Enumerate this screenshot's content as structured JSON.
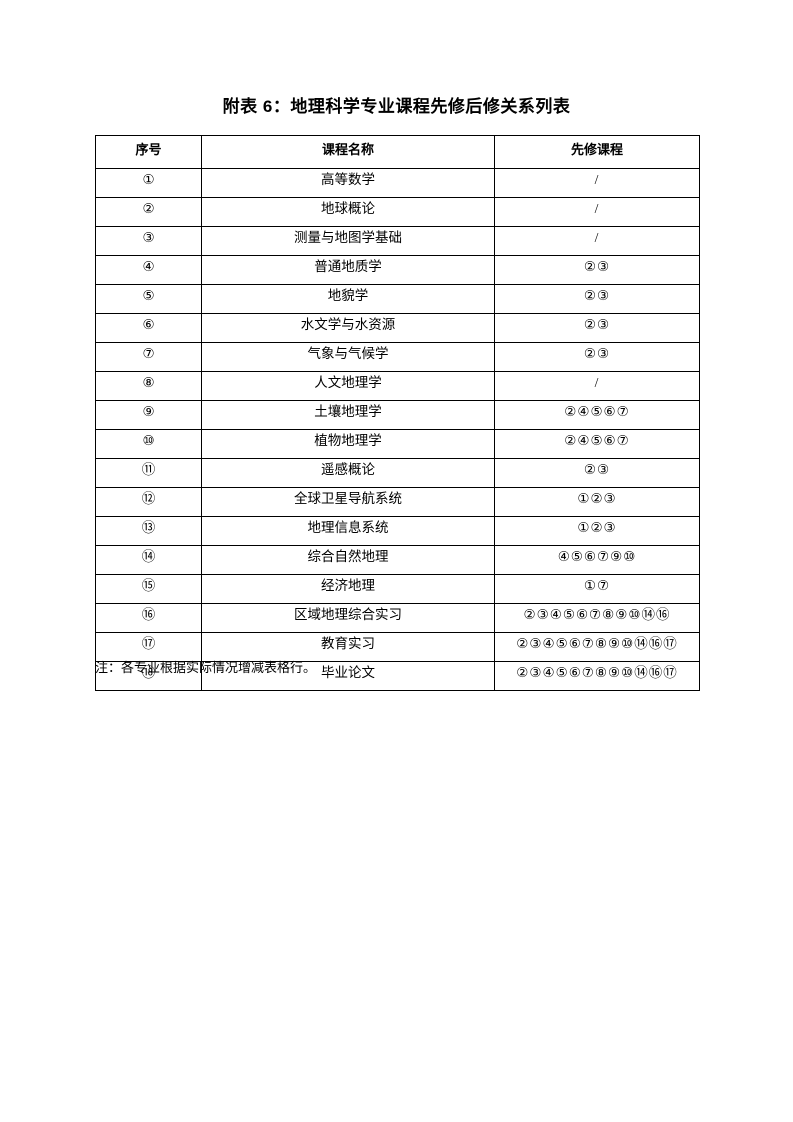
{
  "title": "附表 6：地理科学专业课程先修后修关系列表",
  "table": {
    "headers": [
      "序号",
      "课程名称",
      "先修课程"
    ],
    "rows": [
      {
        "no": "①",
        "course": "高等数学",
        "prereq": "/"
      },
      {
        "no": "②",
        "course": "地球概论",
        "prereq": "/"
      },
      {
        "no": "③",
        "course": "测量与地图学基础",
        "prereq": "/"
      },
      {
        "no": "④",
        "course": "普通地质学",
        "prereq": "②③"
      },
      {
        "no": "⑤",
        "course": "地貌学",
        "prereq": "②③"
      },
      {
        "no": "⑥",
        "course": "水文学与水资源",
        "prereq": "②③"
      },
      {
        "no": "⑦",
        "course": "气象与气候学",
        "prereq": "②③"
      },
      {
        "no": "⑧",
        "course": "人文地理学",
        "prereq": "/"
      },
      {
        "no": "⑨",
        "course": "土壤地理学",
        "prereq": "②④⑤⑥⑦"
      },
      {
        "no": "⑩",
        "course": "植物地理学",
        "prereq": "②④⑤⑥⑦"
      },
      {
        "no": "⑪",
        "course": "遥感概论",
        "prereq": "②③"
      },
      {
        "no": "⑫",
        "course": "全球卫星导航系统",
        "prereq": "①②③"
      },
      {
        "no": "⑬",
        "course": "地理信息系统",
        "prereq": "①②③"
      },
      {
        "no": "⑭",
        "course": "综合自然地理",
        "prereq": "④⑤⑥⑦⑨⑩"
      },
      {
        "no": "⑮",
        "course": "经济地理",
        "prereq": "①⑦"
      },
      {
        "no": "⑯",
        "course": "区域地理综合实习",
        "prereq": "②③④⑤⑥⑦⑧⑨⑩⑭⑯"
      },
      {
        "no": "⑰",
        "course": "教育实习",
        "prereq": "②③④⑤⑥⑦⑧⑨⑩⑭⑯⑰"
      },
      {
        "no": "⑱",
        "course": "毕业论文",
        "prereq": "②③④⑤⑥⑦⑧⑨⑩⑭⑯⑰"
      }
    ]
  },
  "note": "注：各专业根据实际情况增减表格行。"
}
